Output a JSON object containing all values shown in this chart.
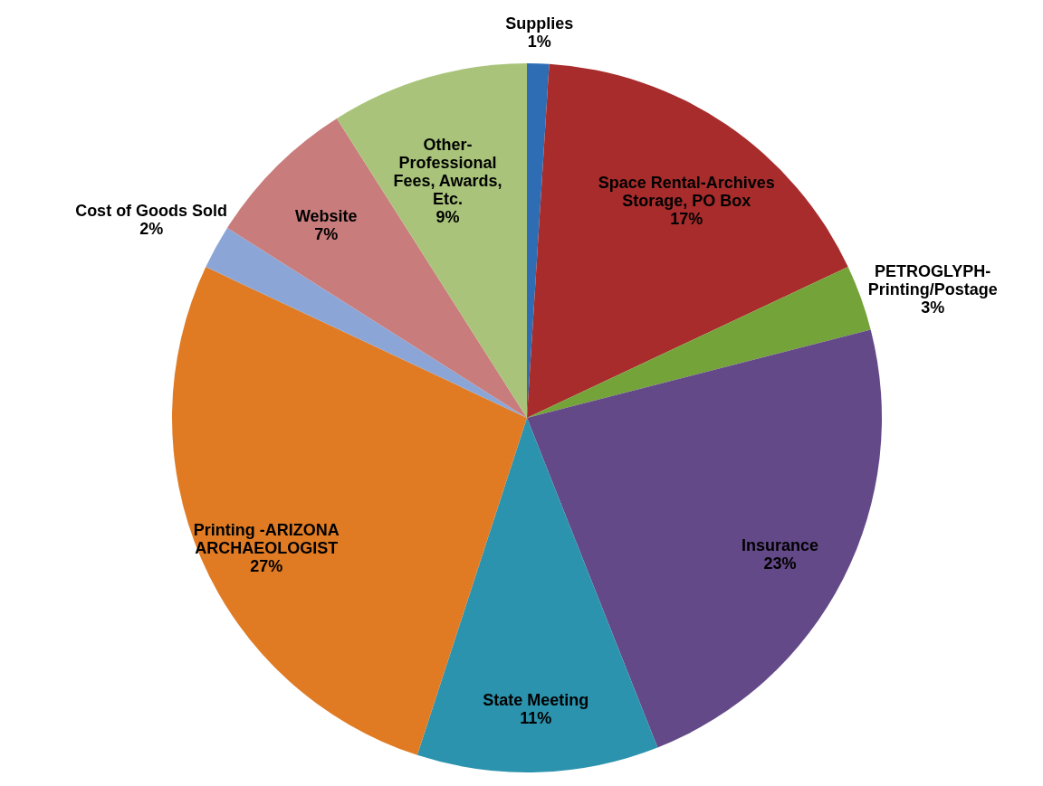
{
  "chart_data": {
    "type": "pie",
    "categories": [
      "Supplies",
      "Space Rental-Archives\nStorage, PO Box",
      "PETROGLYPH-\nPrinting/Postage",
      "Insurance",
      "State Meeting",
      "Printing -ARIZONA\nARCHAEOLOGIST",
      "Cost of Goods Sold",
      "Website",
      "Other-\nProfessional\nFees, Awards,\nEtc."
    ],
    "values": [
      1,
      17,
      3,
      23,
      11,
      27,
      2,
      7,
      9
    ],
    "value_labels": [
      "1%",
      "17%",
      "3%",
      "23%",
      "11%",
      "27%",
      "2%",
      "7%",
      "9%"
    ],
    "colors": [
      "#2e6db4",
      "#a82c2c",
      "#74a33a",
      "#634987",
      "#2b93ad",
      "#e07b24",
      "#8ba6d6",
      "#c97c7c",
      "#a9c47a"
    ]
  }
}
